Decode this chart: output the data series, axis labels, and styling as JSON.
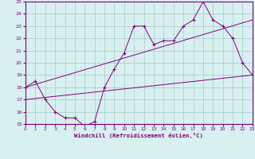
{
  "line1_x": [
    0,
    1,
    2,
    3,
    4,
    5,
    6,
    7,
    8,
    9,
    10,
    11,
    12,
    13,
    14,
    15,
    16,
    17,
    18,
    19,
    20,
    21,
    22,
    23
  ],
  "line1_y": [
    18.0,
    18.5,
    17.0,
    16.0,
    15.5,
    15.5,
    14.8,
    15.2,
    18.0,
    19.5,
    20.8,
    23.0,
    23.0,
    21.5,
    21.8,
    21.8,
    23.0,
    23.5,
    25.0,
    23.5,
    23.0,
    22.0,
    20.0,
    19.0
  ],
  "line2_x": [
    0,
    23
  ],
  "line2_y": [
    18.0,
    23.5
  ],
  "line3_x": [
    0,
    23
  ],
  "line3_y": [
    17.0,
    19.0
  ],
  "color": "#800080",
  "bg_color": "#d8f0f0",
  "grid_color": "#a8c8c8",
  "xlabel": "Windchill (Refroidissement éolien,°C)",
  "ylim": [
    15,
    25
  ],
  "xlim": [
    0,
    23
  ],
  "yticks": [
    15,
    16,
    17,
    18,
    19,
    20,
    21,
    22,
    23,
    24,
    25
  ],
  "xticks": [
    0,
    1,
    2,
    3,
    4,
    5,
    6,
    7,
    8,
    9,
    10,
    11,
    12,
    13,
    14,
    15,
    16,
    17,
    18,
    19,
    20,
    21,
    22,
    23
  ]
}
